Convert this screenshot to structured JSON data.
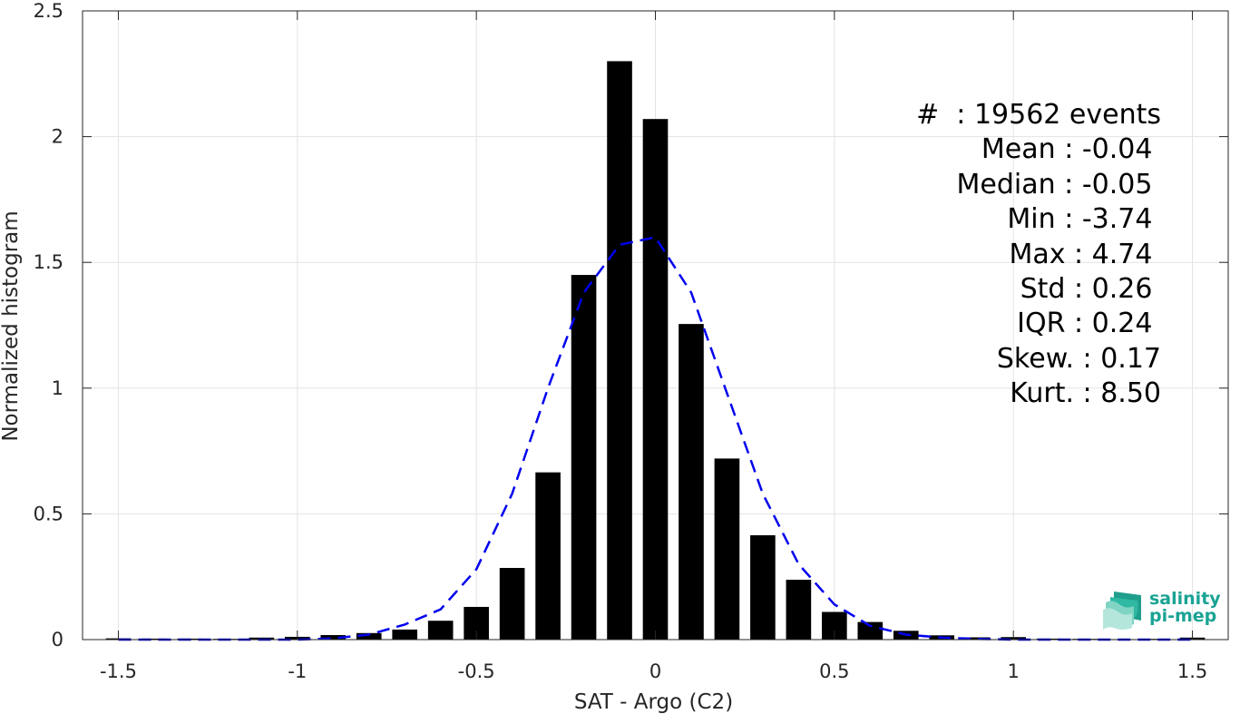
{
  "chart_data": {
    "type": "bar",
    "xlabel": "SAT - Argo (C2)",
    "ylabel": "Normalized histogram",
    "xlim": [
      -1.6,
      1.6
    ],
    "ylim": [
      0,
      2.5
    ],
    "grid": true,
    "x_ticks": [
      -1.5,
      -1,
      -0.5,
      0,
      0.5,
      1,
      1.5
    ],
    "x_tick_labels": [
      "-1.5",
      "-1",
      "-0.5",
      "0",
      "0.5",
      "1",
      "1.5"
    ],
    "y_ticks": [
      0,
      0.5,
      1,
      1.5,
      2,
      2.5
    ],
    "y_tick_labels": [
      "0",
      "0.5",
      "1",
      "1.5",
      "2",
      "2.5"
    ],
    "bar_color": "#000000",
    "bar_width": 0.07,
    "bars": {
      "x": [
        -1.5,
        -1.4,
        -1.3,
        -1.2,
        -1.1,
        -1.0,
        -0.9,
        -0.8,
        -0.7,
        -0.6,
        -0.5,
        -0.4,
        -0.3,
        -0.2,
        -0.1,
        0.0,
        0.1,
        0.2,
        0.3,
        0.4,
        0.5,
        0.6,
        0.7,
        0.8,
        0.9,
        1.0,
        1.1,
        1.2,
        1.3,
        1.4,
        1.5
      ],
      "values": [
        0.005,
        0.004,
        0.004,
        0.003,
        0.008,
        0.011,
        0.018,
        0.026,
        0.04,
        0.075,
        0.13,
        0.285,
        0.665,
        1.45,
        2.3,
        2.07,
        1.255,
        0.72,
        0.415,
        0.238,
        0.11,
        0.07,
        0.035,
        0.017,
        0.009,
        0.01,
        0.004,
        0.003,
        0.002,
        0.003,
        0.008
      ]
    },
    "fit_curve": {
      "color": "#0000ee",
      "style": "dashed",
      "x": [
        -1.5,
        -1.4,
        -1.3,
        -1.2,
        -1.1,
        -1.0,
        -0.9,
        -0.8,
        -0.7,
        -0.6,
        -0.5,
        -0.4,
        -0.3,
        -0.2,
        -0.1,
        0.0,
        0.1,
        0.2,
        0.3,
        0.4,
        0.5,
        0.6,
        0.7,
        0.8,
        0.9,
        1.0,
        1.1,
        1.2,
        1.3,
        1.4,
        1.5
      ],
      "values": [
        0.0,
        0.0,
        0.0,
        0.0,
        0.0,
        0.0,
        0.005,
        0.02,
        0.06,
        0.12,
        0.28,
        0.58,
        1.0,
        1.38,
        1.57,
        1.6,
        1.38,
        0.98,
        0.58,
        0.3,
        0.14,
        0.055,
        0.02,
        0.008,
        0.003,
        0.0,
        0.0,
        0.0,
        0.0,
        0.0,
        0.0
      ]
    },
    "annotation_lines": [
      "#  : 19562 events",
      "Mean : -0.04 ",
      "Median : -0.05 ",
      "Min : -3.74 ",
      "Max : 4.74 ",
      "Std : 0.26 ",
      "IQR : 0.24 ",
      "Skew. : 0.17",
      "Kurt. : 8.50"
    ]
  },
  "logo": {
    "line1": "salinity",
    "line2": "pi-mep",
    "color": "#1aa394"
  }
}
